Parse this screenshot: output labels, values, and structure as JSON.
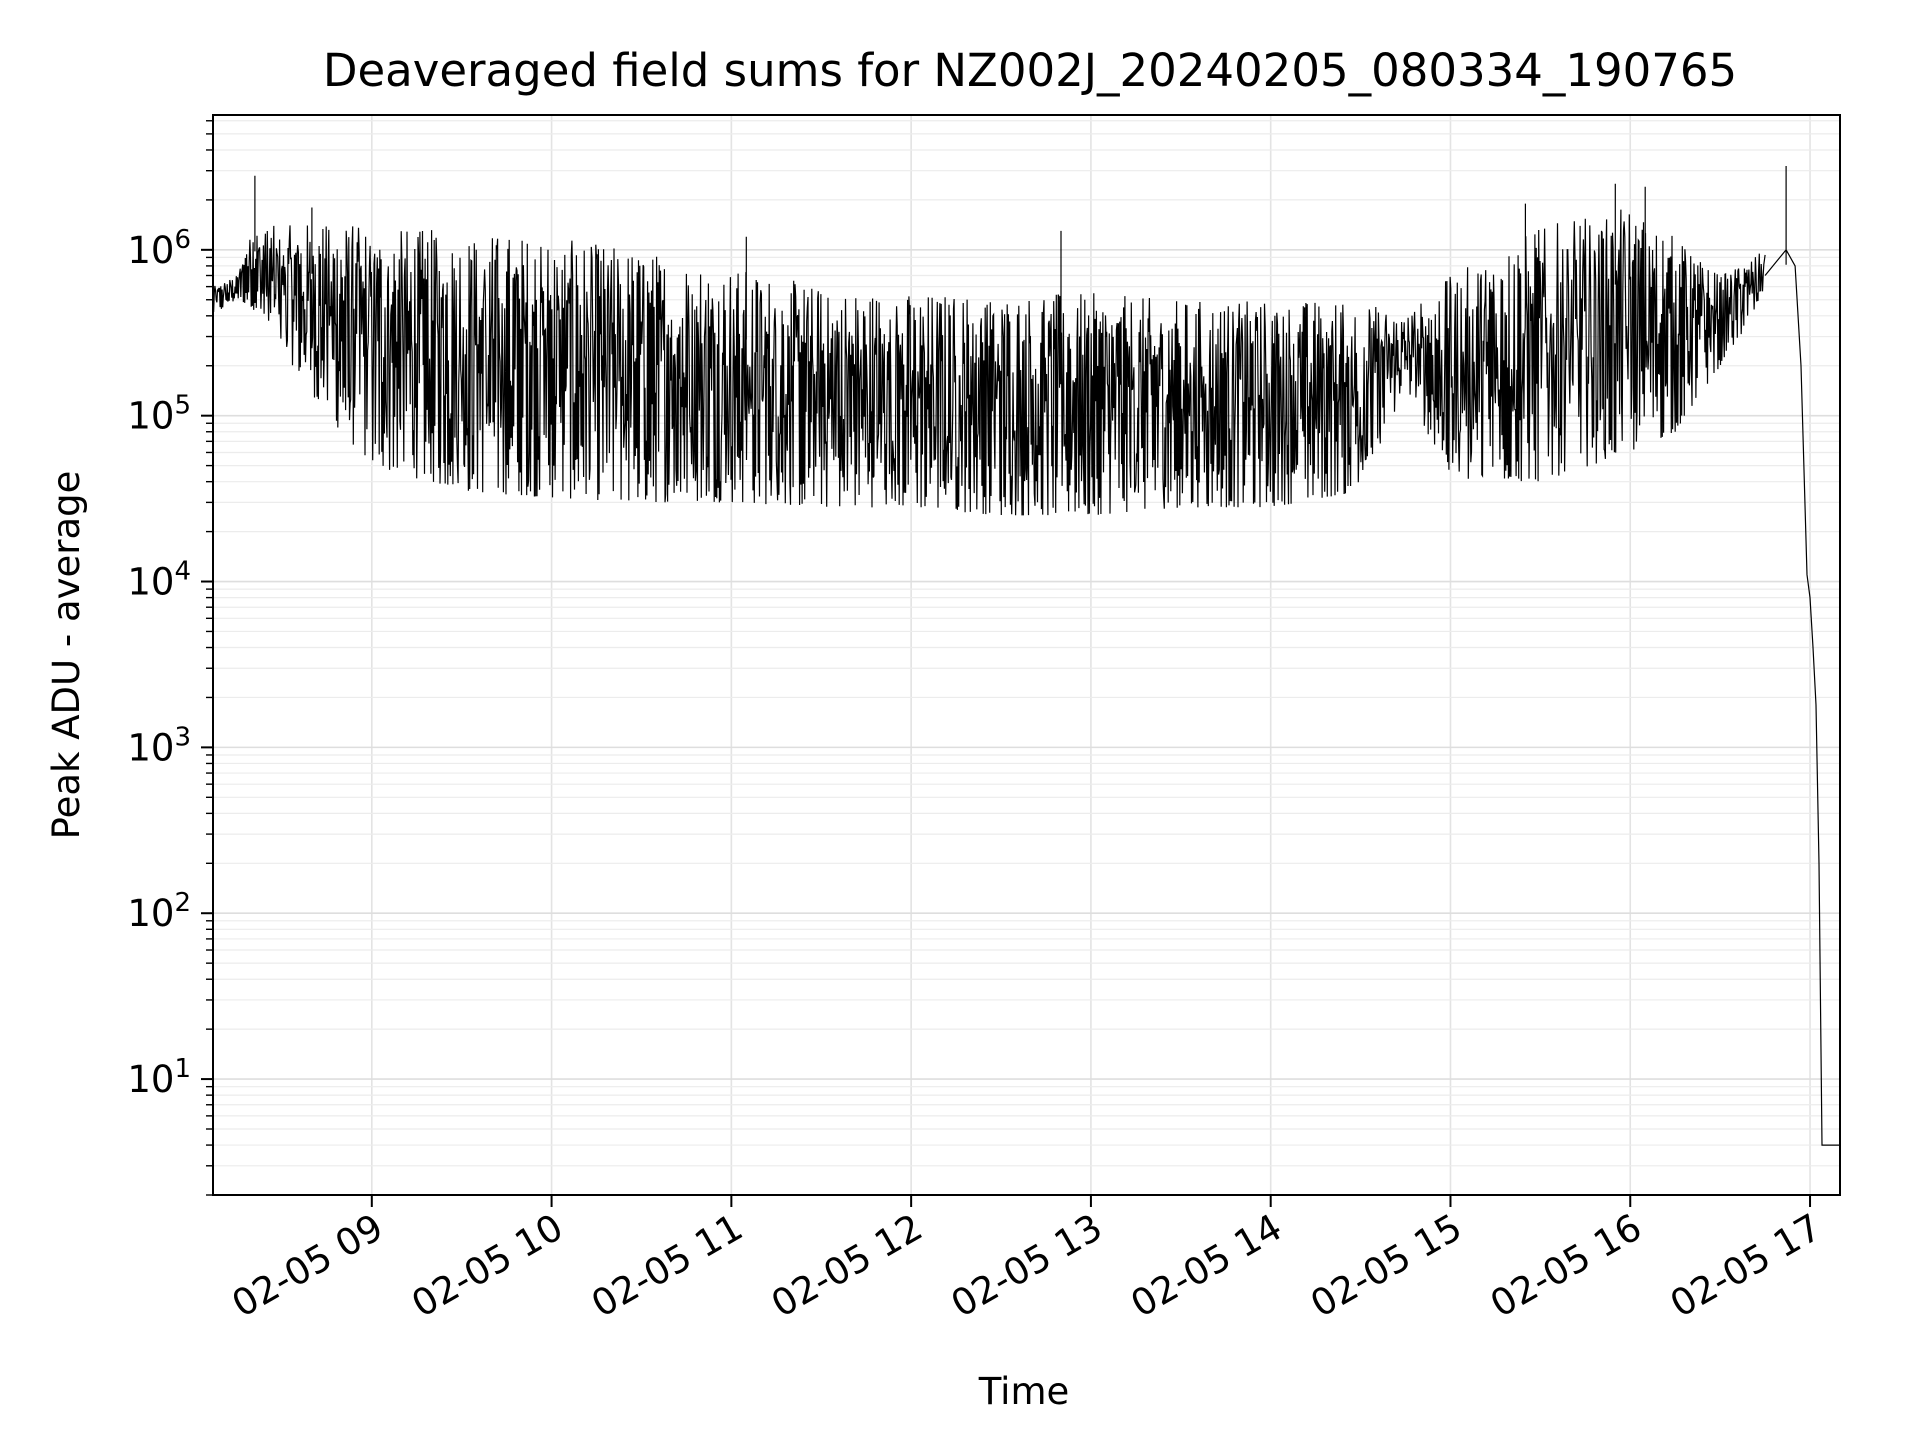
{
  "chart_data": {
    "type": "line",
    "title": "Deaveraged field sums for NZ002J_20240205_080334_190765",
    "xlabel": "Time",
    "ylabel": "Peak ADU - average",
    "yscale": "log",
    "ylim": [
      2,
      6500000
    ],
    "xlim": [
      "2024-02-05 08:07",
      "2024-02-05 17:10"
    ],
    "grid": true,
    "line_color": "#000000",
    "x_ticks": [
      {
        "time": "2024-02-05 09:00",
        "label": "02-05 09"
      },
      {
        "time": "2024-02-05 10:00",
        "label": "02-05 10"
      },
      {
        "time": "2024-02-05 11:00",
        "label": "02-05 11"
      },
      {
        "time": "2024-02-05 12:00",
        "label": "02-05 12"
      },
      {
        "time": "2024-02-05 13:00",
        "label": "02-05 13"
      },
      {
        "time": "2024-02-05 14:00",
        "label": "02-05 14"
      },
      {
        "time": "2024-02-05 15:00",
        "label": "02-05 15"
      },
      {
        "time": "2024-02-05 16:00",
        "label": "02-05 16"
      },
      {
        "time": "2024-02-05 17:00",
        "label": "02-05 17"
      }
    ],
    "y_ticks": [
      {
        "value": 10,
        "base": "10",
        "exp": "1"
      },
      {
        "value": 100,
        "base": "10",
        "exp": "2"
      },
      {
        "value": 1000,
        "base": "10",
        "exp": "3"
      },
      {
        "value": 10000,
        "base": "10",
        "exp": "4"
      },
      {
        "value": 100000,
        "base": "10",
        "exp": "5"
      },
      {
        "value": 1000000,
        "base": "10",
        "exp": "6"
      }
    ],
    "series": [
      {
        "envelope": [
          {
            "time": "2024-02-05 08:07",
            "low": 400000,
            "high": 600000
          },
          {
            "time": "2024-02-05 08:15",
            "low": 500000,
            "high": 700000
          },
          {
            "time": "2024-02-05 08:20",
            "low": 450000,
            "high": 1400000
          },
          {
            "time": "2024-02-05 08:30",
            "low": 250000,
            "high": 1400000
          },
          {
            "time": "2024-02-05 08:45",
            "low": 100000,
            "high": 1500000
          },
          {
            "time": "2024-02-05 09:00",
            "low": 50000,
            "high": 1400000
          },
          {
            "time": "2024-02-05 09:30",
            "low": 35000,
            "high": 1300000
          },
          {
            "time": "2024-02-05 10:00",
            "low": 32000,
            "high": 1200000
          },
          {
            "time": "2024-02-05 10:30",
            "low": 30000,
            "high": 1000000
          },
          {
            "time": "2024-02-05 11:00",
            "low": 30000,
            "high": 800000
          },
          {
            "time": "2024-02-05 11:30",
            "low": 28000,
            "high": 600000
          },
          {
            "time": "2024-02-05 12:00",
            "low": 28000,
            "high": 550000
          },
          {
            "time": "2024-02-05 12:30",
            "low": 25000,
            "high": 550000
          },
          {
            "time": "2024-02-05 13:00",
            "low": 25000,
            "high": 550000
          },
          {
            "time": "2024-02-05 13:30",
            "low": 28000,
            "high": 500000
          },
          {
            "time": "2024-02-05 14:00",
            "low": 28000,
            "high": 500000
          },
          {
            "time": "2024-02-05 14:30",
            "low": 35000,
            "high": 500000
          },
          {
            "time": "2024-02-05 14:45",
            "low": 150000,
            "high": 400000
          },
          {
            "time": "2024-02-05 15:00",
            "low": 40000,
            "high": 700000
          },
          {
            "time": "2024-02-05 15:30",
            "low": 40000,
            "high": 1400000
          },
          {
            "time": "2024-02-05 16:00",
            "low": 60000,
            "high": 1800000
          },
          {
            "time": "2024-02-05 16:15",
            "low": 80000,
            "high": 1200000
          },
          {
            "time": "2024-02-05 16:30",
            "low": 200000,
            "high": 700000
          },
          {
            "time": "2024-02-05 16:45",
            "low": 500000,
            "high": 1000000
          }
        ],
        "spikes": [
          {
            "time": "2024-02-05 08:21",
            "value": 2800000
          },
          {
            "time": "2024-02-05 08:40",
            "value": 1800000
          },
          {
            "time": "2024-02-05 11:05",
            "value": 1200000
          },
          {
            "time": "2024-02-05 12:50",
            "value": 1300000
          },
          {
            "time": "2024-02-05 15:25",
            "value": 1900000
          },
          {
            "time": "2024-02-05 15:55",
            "value": 2500000
          },
          {
            "time": "2024-02-05 16:05",
            "value": 2400000
          },
          {
            "time": "2024-02-05 16:52",
            "value": 3200000
          }
        ],
        "tail": [
          {
            "time": "2024-02-05 16:45",
            "value": 700000
          },
          {
            "time": "2024-02-05 16:52",
            "value": 1000000
          },
          {
            "time": "2024-02-05 16:55",
            "value": 800000
          },
          {
            "time": "2024-02-05 16:57",
            "value": 200000
          },
          {
            "time": "2024-02-05 16:59",
            "value": 11000
          },
          {
            "time": "2024-02-05 17:00",
            "value": 8000
          },
          {
            "time": "2024-02-05 17:01",
            "value": 4000
          },
          {
            "time": "2024-02-05 17:02",
            "value": 1800
          },
          {
            "time": "2024-02-05 17:03",
            "value": 200
          },
          {
            "time": "2024-02-05 17:04",
            "value": 4
          },
          {
            "time": "2024-02-05 17:10",
            "value": 4
          }
        ]
      }
    ]
  }
}
